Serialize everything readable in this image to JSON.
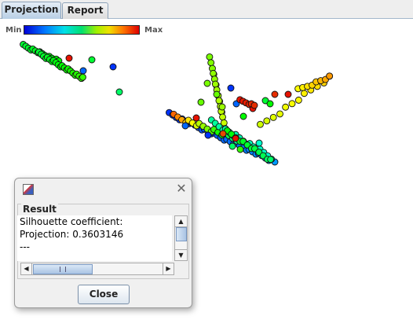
{
  "tabs": [
    {
      "label": "Projection",
      "active": true
    },
    {
      "label": "Report",
      "active": false
    }
  ],
  "legend": {
    "min_label": "Min",
    "max_label": "Max"
  },
  "dialog": {
    "group_title": "Result",
    "text_lines": [
      "Silhouette coefficient:",
      "Projection: 0.3603146",
      "---"
    ],
    "close_label": "Close",
    "icons": {
      "app": "java-app-icon",
      "close": "close-icon"
    }
  },
  "colors": {
    "low": "#0000d8",
    "mid_low": "#00e0e8",
    "mid": "#00e070",
    "mid_high": "#f0e000",
    "high": "#e00000"
  }
}
